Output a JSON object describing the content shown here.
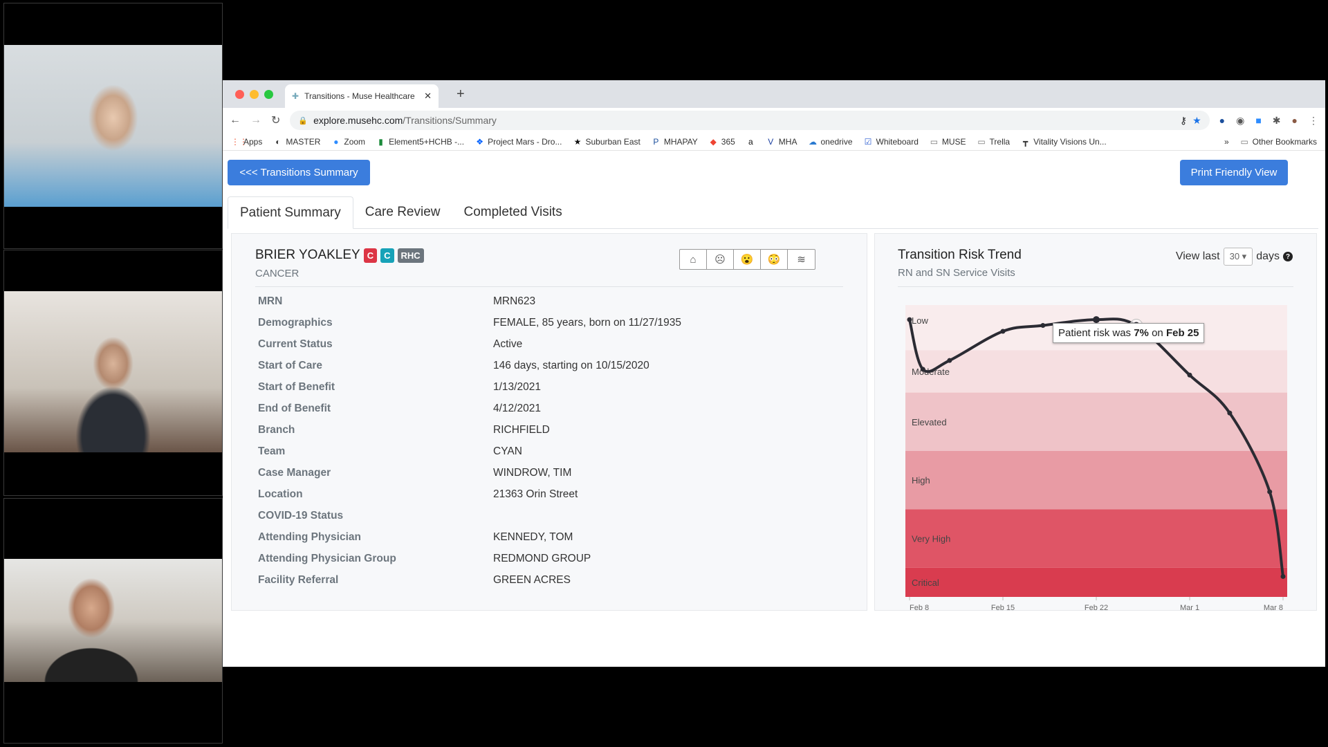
{
  "participants": [
    {
      "name": "participant-1"
    },
    {
      "name": "participant-2"
    },
    {
      "name": "participant-3"
    }
  ],
  "browser": {
    "tab_title": "Transitions - Muse Healthcare",
    "url_host": "explore.musehc.com",
    "url_path": "/Transitions/Summary",
    "bookmarks": [
      "Apps",
      "MASTER",
      "Zoom",
      "Element5+HCHB -...",
      "Project Mars - Dro...",
      "Suburban East",
      "MHAPAY",
      "365",
      "",
      "MHA",
      "onedrive",
      "Whiteboard",
      "MUSE",
      "Trella",
      "Vitality Visions Un..."
    ],
    "bookmarks_overflow": "»",
    "other_bookmarks": "Other Bookmarks"
  },
  "page": {
    "back_button": "<<< Transitions Summary",
    "print_button": "Print Friendly View",
    "tabs": [
      {
        "label": "Patient Summary",
        "active": true
      },
      {
        "label": "Care Review"
      },
      {
        "label": "Completed Visits"
      }
    ],
    "accent": "#3b7ddd"
  },
  "patient": {
    "name": "BRIER YOAKLEY",
    "badges": [
      {
        "text": "C",
        "color": "#dc3545"
      },
      {
        "text": "C",
        "color": "#17a2b8"
      },
      {
        "text": "RHC",
        "color": "#6c757d"
      }
    ],
    "diagnosis": "CANCER",
    "action_icons": [
      "home-icon",
      "sad-face-icon",
      "surprised-face-icon",
      "flushed-face-icon",
      "wind-icon"
    ],
    "fields": [
      {
        "label": "MRN",
        "value": "MRN623"
      },
      {
        "label": "Demographics",
        "value": "FEMALE, 85 years, born on 11/27/1935"
      },
      {
        "label": "Current Status",
        "value": "Active"
      },
      {
        "label": "Start of Care",
        "value": "146 days, starting on 10/15/2020"
      },
      {
        "label": "Start of Benefit",
        "value": "1/13/2021"
      },
      {
        "label": "End of Benefit",
        "value": "4/12/2021"
      },
      {
        "label": "Branch",
        "value": "RICHFIELD"
      },
      {
        "label": "Team",
        "value": "CYAN"
      },
      {
        "label": "Case Manager",
        "value": "WINDROW, TIM"
      },
      {
        "label": "Location",
        "value": "21363 Orin Street"
      },
      {
        "label": "COVID-19 Status",
        "value": ""
      },
      {
        "label": "Attending Physician",
        "value": "KENNEDY, TOM"
      },
      {
        "label": "Attending Physician Group",
        "value": "REDMOND GROUP"
      },
      {
        "label": "Facility Referral",
        "value": "GREEN ACRES"
      }
    ]
  },
  "risk": {
    "title": "Transition Risk Trend",
    "subtitle": "RN and SN Service Visits",
    "view_last_label": "View last",
    "view_last_value": "30",
    "days_label": "days",
    "help_icon": "question-circle-icon",
    "tooltip": {
      "prefix": "Patient risk was ",
      "value": "7%",
      "mid": " on ",
      "date": "Feb 25"
    }
  },
  "chart_data": {
    "type": "line",
    "ylabel": "",
    "xlabel": "",
    "y_unit": "risk %",
    "ylim": [
      0,
      100
    ],
    "y_inverted": true,
    "xticks": [
      "Feb 8",
      "Feb 15",
      "Feb 22",
      "Mar 1",
      "Mar 8"
    ],
    "bands": [
      {
        "label": "Low",
        "from": 0,
        "to": 15.5,
        "color": "#f9eced"
      },
      {
        "label": "Moderate",
        "from": 15.5,
        "to": 30,
        "color": "#f6dfe1"
      },
      {
        "label": "Elevated",
        "from": 30,
        "to": 50,
        "color": "#efc3c8"
      },
      {
        "label": "High",
        "from": 50,
        "to": 70,
        "color": "#e89ba4"
      },
      {
        "label": "Very High",
        "from": 70,
        "to": 90,
        "color": "#df5566"
      },
      {
        "label": "Critical",
        "from": 90,
        "to": 100,
        "color": "#d93c4f"
      }
    ],
    "points": [
      {
        "x": "Feb 8",
        "y": 5
      },
      {
        "x": "Feb 9",
        "y": 22
      },
      {
        "x": "Feb 11",
        "y": 19
      },
      {
        "x": "Feb 15",
        "y": 9
      },
      {
        "x": "Feb 18",
        "y": 7
      },
      {
        "x": "Feb 22",
        "y": 5
      },
      {
        "x": "Feb 25",
        "y": 7
      },
      {
        "x": "Mar 1",
        "y": 24
      },
      {
        "x": "Mar 4",
        "y": 37
      },
      {
        "x": "Mar 7",
        "y": 64
      },
      {
        "x": "Mar 8",
        "y": 93
      }
    ],
    "line_color": "#2b2b33",
    "highlighted": "Feb 25"
  }
}
